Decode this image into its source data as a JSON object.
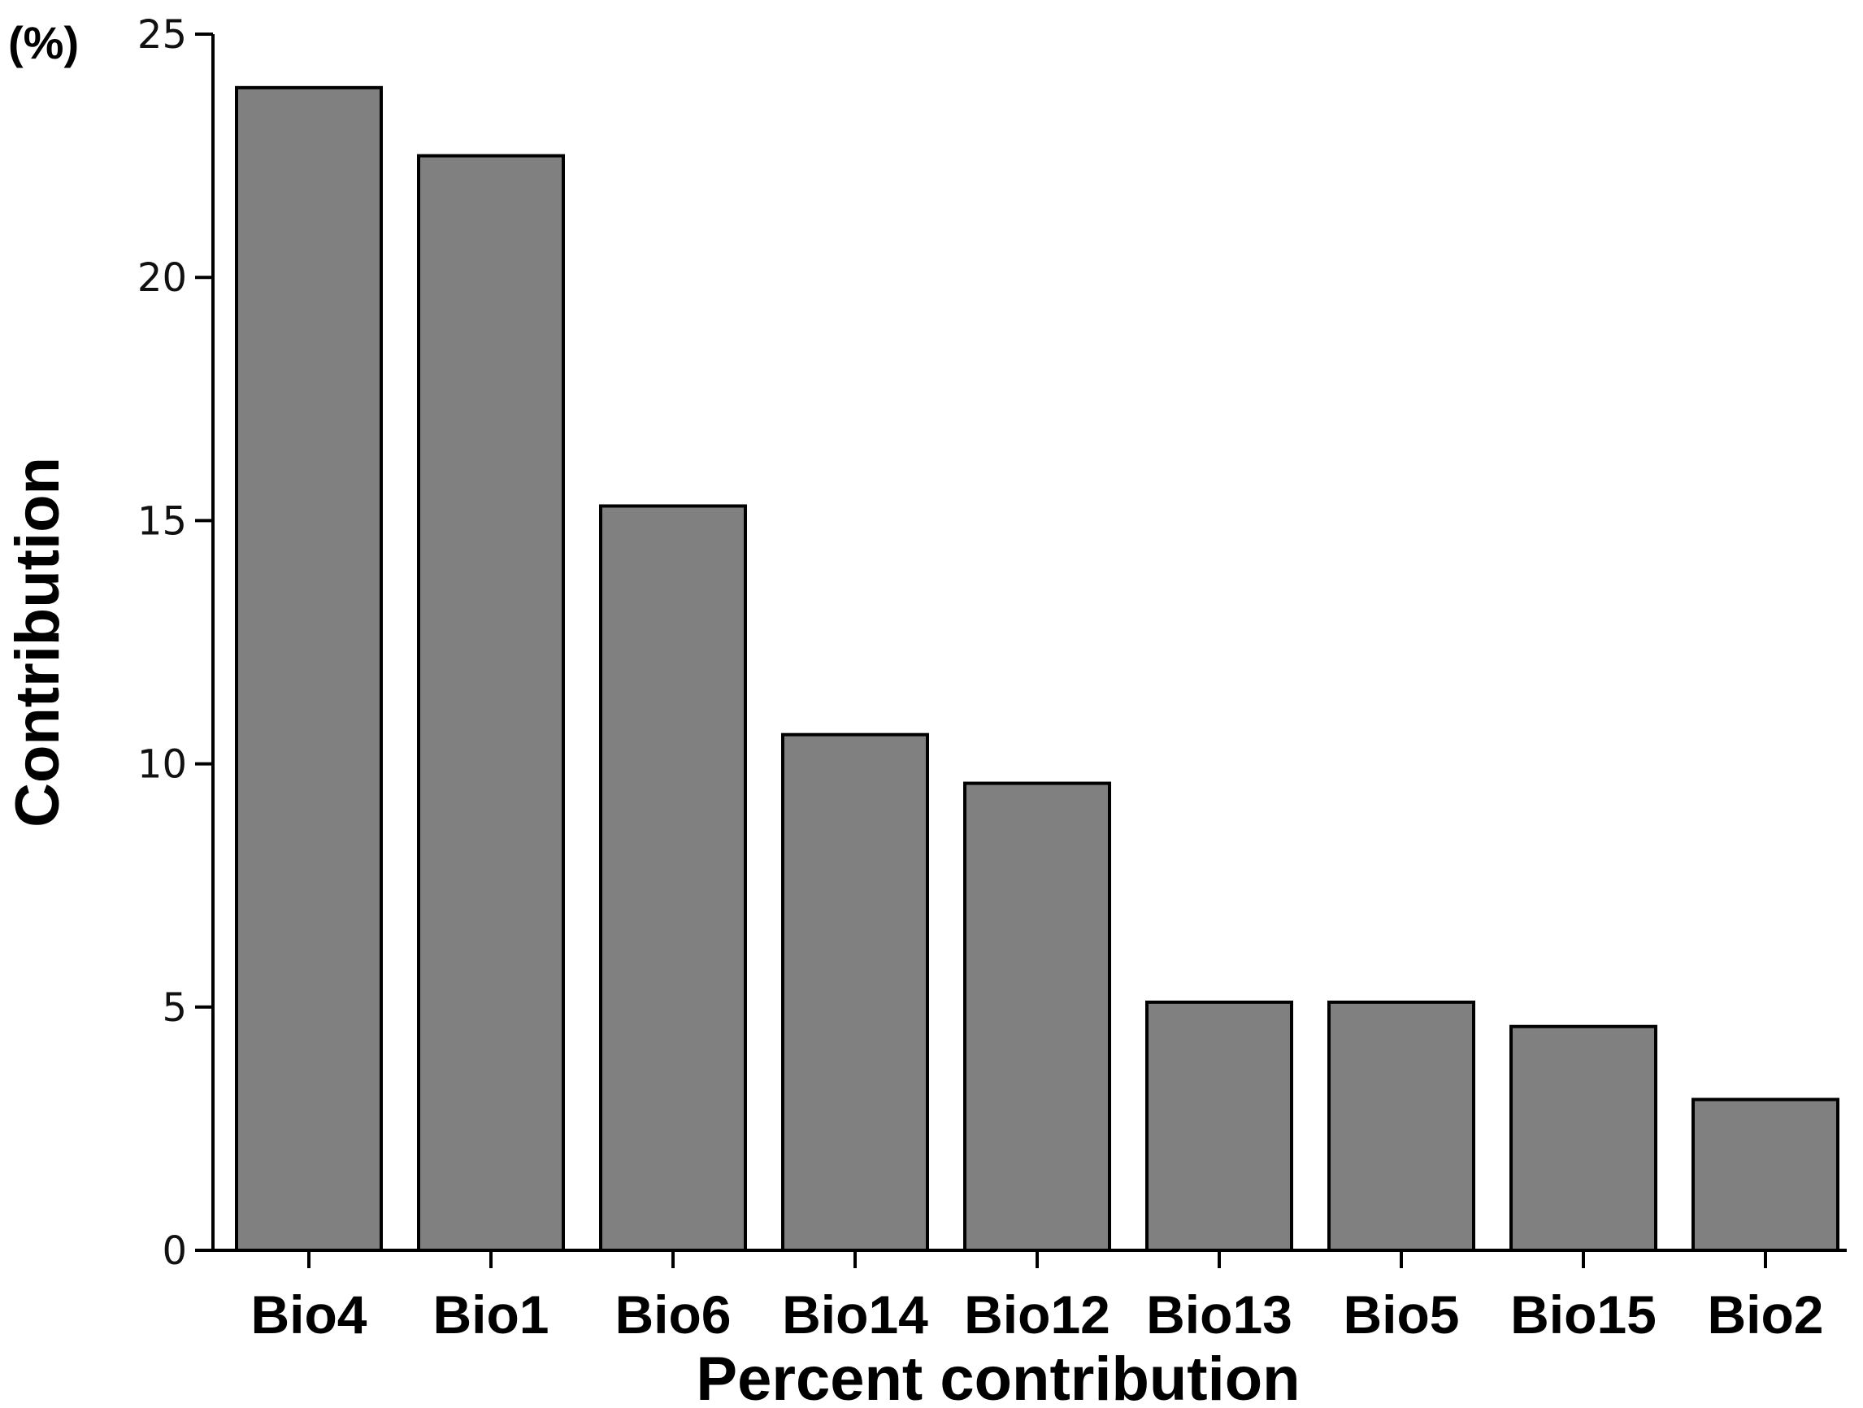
{
  "chart_data": {
    "type": "bar",
    "categories": [
      "Bio4",
      "Bio1",
      "Bio6",
      "Bio14",
      "Bio12",
      "Bio13",
      "Bio5",
      "Bio15",
      "Bio2"
    ],
    "values": [
      23.9,
      22.5,
      15.3,
      10.6,
      9.6,
      5.1,
      5.1,
      4.6,
      3.1
    ],
    "title": "",
    "xlabel": "Percent contribution",
    "ylabel": "Contribution",
    "yunit": "(%)",
    "ylim": [
      0,
      25
    ],
    "yticks": [
      "0",
      "5",
      "10",
      "15",
      "20",
      "25"
    ],
    "grid": false,
    "bar_color": "#808080",
    "bar_edge_color": "#000000"
  }
}
